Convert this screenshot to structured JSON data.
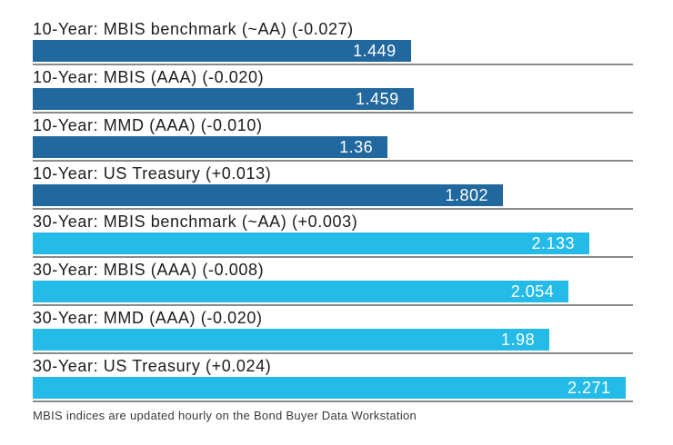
{
  "chart_data": {
    "type": "bar",
    "orientation": "horizontal",
    "value_axis_max": 2.3,
    "grid": "row-baselines-only",
    "legend": "none",
    "colors": {
      "ten_year_bar": "#21689E",
      "thirty_year_bar": "#24BBE9",
      "baseline": "#8a8a8a",
      "label_text": "#1c1c1c",
      "value_text": "#ffffff"
    },
    "bars": [
      {
        "label": "10-Year: MBIS benchmark (~AA) (-0.027)",
        "value": 1.449,
        "display_value": "1.449",
        "group": "10-year"
      },
      {
        "label": "10-Year: MBIS (AAA) (-0.020)",
        "value": 1.459,
        "display_value": "1.459",
        "group": "10-year"
      },
      {
        "label": "10-Year: MMD (AAA) (-0.010)",
        "value": 1.36,
        "display_value": "1.36",
        "group": "10-year"
      },
      {
        "label": "10-Year: US Treasury (+0.013)",
        "value": 1.802,
        "display_value": "1.802",
        "group": "10-year"
      },
      {
        "label": "30-Year: MBIS benchmark (~AA) (+0.003)",
        "value": 2.133,
        "display_value": "2.133",
        "group": "30-year"
      },
      {
        "label": "30-Year: MBIS (AAA) (-0.008)",
        "value": 2.054,
        "display_value": "2.054",
        "group": "30-year"
      },
      {
        "label": "30-Year: MMD (AAA) (-0.020)",
        "value": 1.98,
        "display_value": "1.98",
        "group": "30-year"
      },
      {
        "label": "30-Year: US Treasury (+0.024)",
        "value": 2.271,
        "display_value": "2.271",
        "group": "30-year"
      }
    ],
    "footnote": "MBIS indices are updated hourly on the Bond Buyer Data Workstation"
  }
}
